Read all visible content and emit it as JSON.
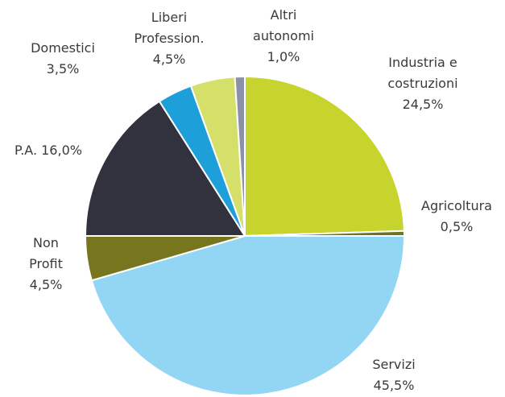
{
  "chart_data": {
    "type": "pie",
    "categories": [
      "Industria e costruzioni",
      "Agricoltura",
      "Servizi",
      "Non Profit",
      "P.A.",
      "Domestici",
      "Liberi Profession.",
      "Altri autonomi"
    ],
    "values": [
      24.5,
      0.5,
      45.5,
      4.5,
      16.0,
      3.5,
      4.5,
      1.0
    ],
    "value_labels": [
      "24,5%",
      "0,5%",
      "45,5%",
      "4,5%",
      "16,0%",
      "3,5%",
      "4,5%",
      "1,0%"
    ],
    "colors": [
      "#c8d42e",
      "#6b7522",
      "#93d6f4",
      "#77761f",
      "#32323e",
      "#1d9fd9",
      "#d5e06a",
      "#8b91a6"
    ]
  }
}
